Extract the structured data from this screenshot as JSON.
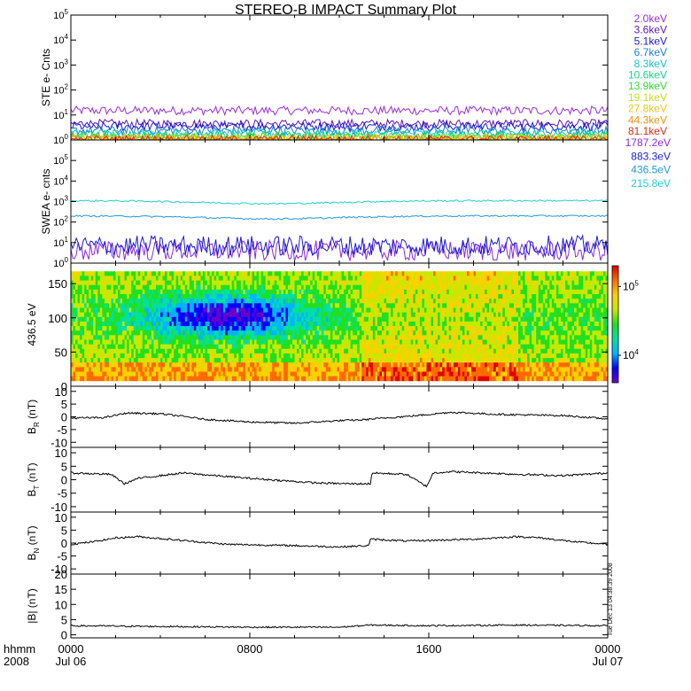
{
  "title": "STEREO-B IMPACT Summary Plot",
  "stamp": "Tue Dec 13 04:38:39 2008",
  "x_axis": {
    "row1_label": "hhmm",
    "row2_label": "2008",
    "ticks": [
      {
        "t": 0,
        "top": "0000",
        "bottom": "Jul 06"
      },
      {
        "t": 8,
        "top": "0800",
        "bottom": ""
      },
      {
        "t": 16,
        "top": "1600",
        "bottom": ""
      },
      {
        "t": 24,
        "top": "0000",
        "bottom": "Jul 07"
      }
    ],
    "range_hours": [
      0,
      24
    ]
  },
  "chart_data": [
    {
      "type": "line",
      "ylabel": "STE e- Cnts",
      "yscale": "log",
      "ylim": [
        1,
        100000
      ],
      "yticks": [
        "10^0",
        "10^1",
        "10^2",
        "10^3",
        "10^4",
        "10^5"
      ],
      "series": [
        {
          "name": "2.0keV",
          "color": "#9a2fd6",
          "level": 15
        },
        {
          "name": "3.6keV",
          "color": "#5a16b5",
          "level": 4.5
        },
        {
          "name": "5.1keV",
          "color": "#1c1ccf",
          "level": 3.5
        },
        {
          "name": "6.7keV",
          "color": "#1e7ed6",
          "level": 2.4
        },
        {
          "name": "8.3keV",
          "color": "#14c7c7",
          "level": 1.8
        },
        {
          "name": "10.6keV",
          "color": "#18d48a",
          "level": 1.5
        },
        {
          "name": "13.9keV",
          "color": "#2ee02e",
          "level": 1.3
        },
        {
          "name": "19.1keV",
          "color": "#c6e01a",
          "level": 1.15
        },
        {
          "name": "27.8keV",
          "color": "#e8c812",
          "level": 1.1
        },
        {
          "name": "44.3keV",
          "color": "#f09010",
          "level": 1.05
        },
        {
          "name": "81.1keV",
          "color": "#e22a10",
          "level": 1.02
        }
      ]
    },
    {
      "type": "line",
      "ylabel": "SWEA e- cnts",
      "yscale": "log",
      "ylim": [
        1,
        1000000
      ],
      "yticks": [
        "10^0",
        "10^1",
        "10^2",
        "10^3",
        "10^4",
        "10^5"
      ],
      "series": [
        {
          "name": "1787.2eV",
          "color": "#8a2be2",
          "level": 4
        },
        {
          "name": "883.3eV",
          "color": "#1c1ccf",
          "level": 7
        },
        {
          "name": "436.5eV",
          "color": "#1f9ad6",
          "level": 200
        },
        {
          "name": "215.8eV",
          "color": "#20cfcf",
          "level": 1100
        }
      ]
    },
    {
      "type": "heatmap",
      "ylabel": "436.5 eV",
      "ylim": [
        0,
        180
      ],
      "yticks": [
        0,
        50,
        100,
        150
      ],
      "colorbar_labels": [
        "10^4",
        "10^5"
      ],
      "colorbar_range": [
        4000,
        200000
      ],
      "colors": [
        "#6a00c8",
        "#0000ff",
        "#00b4ff",
        "#00e0a0",
        "#20e020",
        "#c8e800",
        "#ffd000",
        "#ff6a00",
        "#e00000"
      ]
    },
    {
      "type": "line",
      "ylabel": "B_R (nT)",
      "ylim": [
        -12,
        12
      ],
      "yticks": [
        -10,
        -5,
        0,
        5,
        10
      ],
      "x": [
        0,
        1.5,
        2.5,
        4,
        5,
        6,
        8,
        10,
        12,
        13,
        14,
        15.5,
        17,
        19,
        20.5,
        22,
        23.5,
        24
      ],
      "values": [
        -0.5,
        -0.3,
        1.5,
        1.2,
        0.2,
        -1.0,
        -2.0,
        -2.5,
        -1.5,
        -1.2,
        -0.5,
        0.5,
        1.8,
        1.0,
        0.7,
        0.5,
        -0.5,
        -0.8
      ]
    },
    {
      "type": "line",
      "ylabel": "B_T (nT)",
      "ylim": [
        -12,
        12
      ],
      "yticks": [
        -10,
        -5,
        0,
        5,
        10
      ],
      "x": [
        0,
        1.8,
        2.4,
        3,
        5,
        8,
        11,
        12.5,
        13.4,
        13.45,
        15,
        15.9,
        16.2,
        17,
        20,
        22,
        24
      ],
      "values": [
        2.5,
        2.0,
        -1.5,
        0.5,
        2.5,
        0.5,
        -1.2,
        -1.5,
        -1.5,
        2.5,
        2.0,
        -2.5,
        2.5,
        3.0,
        2.0,
        1.5,
        2.5
      ]
    },
    {
      "type": "line",
      "ylabel": "B_N (nT)",
      "ylim": [
        -12,
        12
      ],
      "yticks": [
        -10,
        -5,
        0,
        5,
        10
      ],
      "x": [
        0,
        1,
        2,
        3,
        5,
        7,
        10,
        12,
        13.3,
        13.4,
        15,
        16,
        18,
        20,
        21,
        22.5,
        24
      ],
      "values": [
        -0.5,
        0.5,
        2.0,
        2.5,
        1.0,
        -0.5,
        -1.0,
        -1.5,
        -1.0,
        1.5,
        0.8,
        1.0,
        1.5,
        2.5,
        2.0,
        0.5,
        -0.5
      ]
    },
    {
      "type": "line",
      "ylabel": "|B| (nT)",
      "ylim": [
        -1,
        20
      ],
      "yticks": [
        0,
        5,
        10,
        15,
        20
      ],
      "x": [
        0,
        3,
        8,
        12,
        13.4,
        16,
        20,
        24
      ],
      "values": [
        3.0,
        2.8,
        2.5,
        2.5,
        3.2,
        3.0,
        3.2,
        3.0
      ]
    }
  ]
}
